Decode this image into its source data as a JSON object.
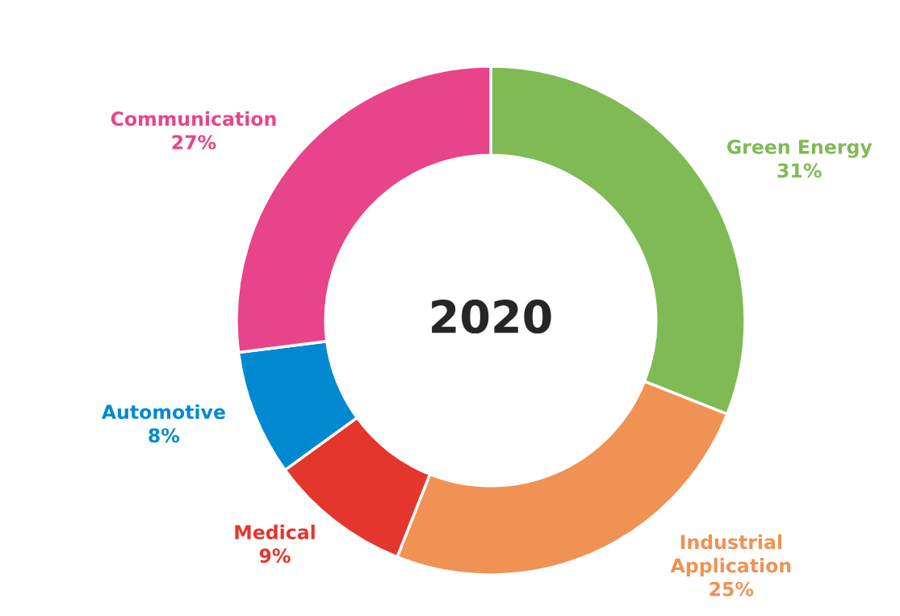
{
  "chart_data": {
    "type": "donut",
    "title": "2020",
    "categories": [
      "Green Energy",
      "Industrial\nApplication",
      "Medical",
      "Automotive",
      "Communication"
    ],
    "values": [
      31,
      25,
      9,
      8,
      27
    ],
    "value_labels": [
      "31%",
      "25%",
      "9%",
      "8%",
      "27%"
    ],
    "colors": [
      "#7fba55",
      "#f09254",
      "#e4362c",
      "#0089d0",
      "#e8448a"
    ],
    "legend": false
  }
}
